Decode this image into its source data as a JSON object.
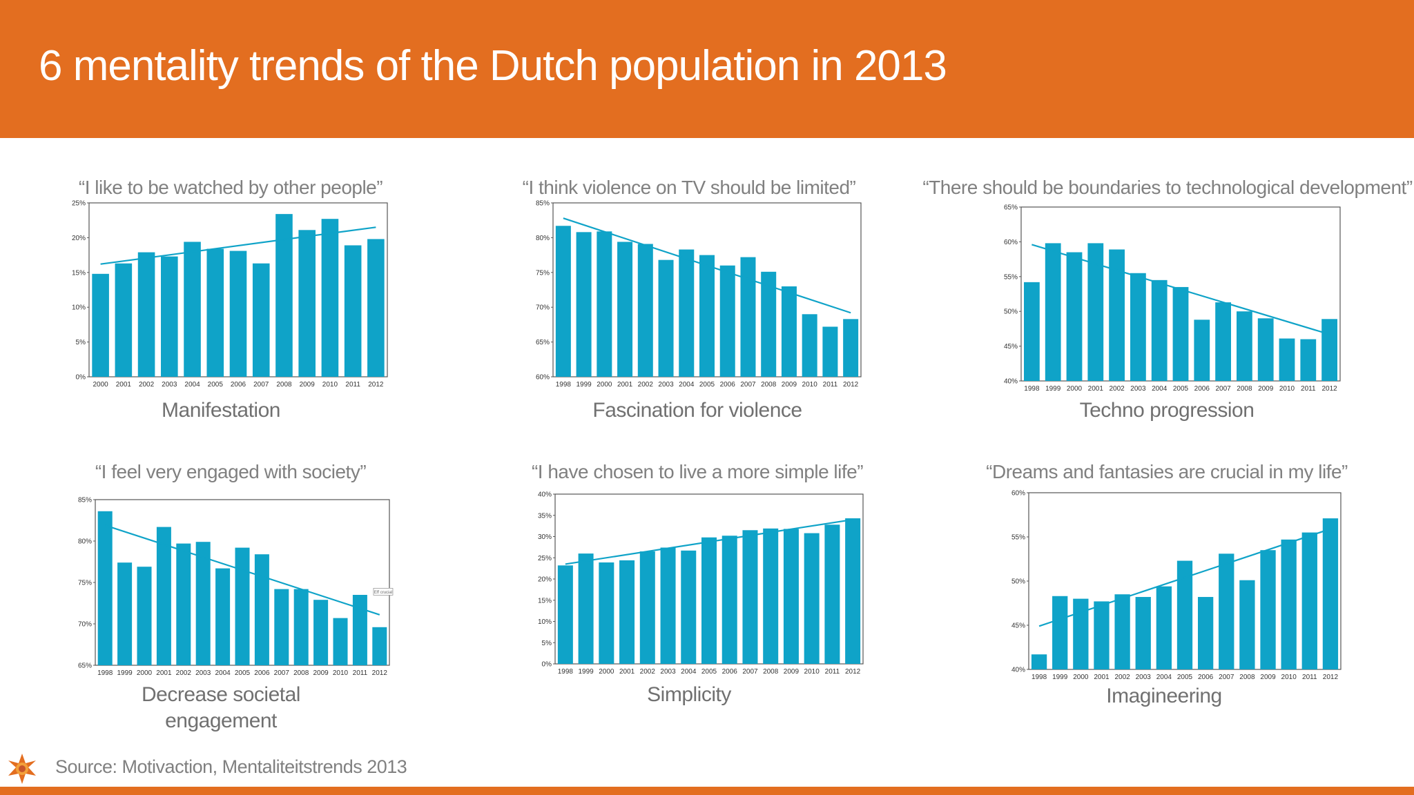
{
  "title": "6 mentality trends of the Dutch population in 2013",
  "source": "Source: Motivaction, Mentaliteitstrends 2013",
  "colors": {
    "header": "#e36e20",
    "bar": "#0fa3c8",
    "trend": "#0fa3c8",
    "text_gray": "#808080"
  },
  "logo_icon": "sun-logo-icon",
  "chart_data": [
    {
      "type": "bar",
      "quote": "“I like to be watched by other people”",
      "caption": "Manifestation",
      "categories": [
        "2000",
        "2001",
        "2002",
        "2003",
        "2004",
        "2005",
        "2006",
        "2007",
        "2008",
        "2009",
        "2010",
        "2011",
        "2012"
      ],
      "values": [
        14.8,
        16.3,
        17.9,
        17.3,
        19.4,
        18.4,
        18.1,
        16.3,
        23.4,
        21.1,
        22.7,
        18.9,
        19.8
      ],
      "trendline": [
        16.2,
        21.5
      ],
      "ylim": [
        0,
        25
      ],
      "yticks": [
        "0%",
        "5%",
        "10%",
        "15%",
        "20%",
        "25%"
      ],
      "grid": false
    },
    {
      "type": "bar",
      "quote": "“I think violence on TV should be limited”",
      "caption": "Fascination for violence",
      "categories": [
        "1998",
        "1999",
        "2000",
        "2001",
        "2002",
        "2003",
        "2004",
        "2005",
        "2006",
        "2007",
        "2008",
        "2009",
        "2010",
        "2011",
        "2012"
      ],
      "values": [
        81.7,
        80.8,
        80.9,
        79.4,
        79.1,
        76.8,
        78.3,
        77.5,
        76.0,
        77.2,
        75.1,
        73.0,
        69.0,
        67.2,
        68.3
      ],
      "trendline": [
        82.8,
        69.2
      ],
      "ylim": [
        60,
        85
      ],
      "yticks": [
        "60%",
        "65%",
        "70%",
        "75%",
        "80%",
        "85%"
      ],
      "grid": false
    },
    {
      "type": "bar",
      "quote": "“There should be boundaries to technological development”",
      "caption": "Techno progression",
      "categories": [
        "1998",
        "1999",
        "2000",
        "2001",
        "2002",
        "2003",
        "2004",
        "2005",
        "2006",
        "2007",
        "2008",
        "2009",
        "2010",
        "2011",
        "2012"
      ],
      "values": [
        54.2,
        59.8,
        58.5,
        59.8,
        58.9,
        55.5,
        54.5,
        53.5,
        48.8,
        51.3,
        50.0,
        49.0,
        46.1,
        46.0,
        48.9
      ],
      "trendline": [
        59.6,
        46.7
      ],
      "ylim": [
        40,
        65
      ],
      "yticks": [
        "40%",
        "45%",
        "50%",
        "55%",
        "60%",
        "65%"
      ],
      "grid": false
    },
    {
      "type": "bar",
      "quote": "“I feel very engaged with society”",
      "caption": "Decrease societal engagement",
      "categories": [
        "1998",
        "1999",
        "2000",
        "2001",
        "2002",
        "2003",
        "2004",
        "2005",
        "2006",
        "2007",
        "2008",
        "2009",
        "2010",
        "2011",
        "2012"
      ],
      "values": [
        83.6,
        77.4,
        76.9,
        81.7,
        79.7,
        79.9,
        76.7,
        79.2,
        78.4,
        74.2,
        74.2,
        72.9,
        70.7,
        73.5,
        69.6
      ],
      "trendline": [
        81.9,
        71.1
      ],
      "ylim": [
        65,
        85
      ],
      "yticks": [
        "65%",
        "70%",
        "75%",
        "80%",
        "85%"
      ],
      "grid": false,
      "annotation": "Eff crucial"
    },
    {
      "type": "bar",
      "quote": "“I have chosen to live a more simple life”",
      "caption": "Simplicity",
      "categories": [
        "1998",
        "1999",
        "2000",
        "2001",
        "2002",
        "2003",
        "2004",
        "2005",
        "2006",
        "2007",
        "2008",
        "2009",
        "2010",
        "2011",
        "2012"
      ],
      "values": [
        23.2,
        26.0,
        23.9,
        24.4,
        26.5,
        27.4,
        26.7,
        29.8,
        30.2,
        31.5,
        31.9,
        31.8,
        30.8,
        32.8,
        34.3
      ],
      "trendline": [
        23.5,
        34.0
      ],
      "ylim": [
        0,
        40
      ],
      "yticks": [
        "0%",
        "5%",
        "10%",
        "15%",
        "20%",
        "25%",
        "30%",
        "35%",
        "40%"
      ],
      "grid": false
    },
    {
      "type": "bar",
      "quote": "“Dreams and fantasies are crucial in my life”",
      "caption": "Imagineering",
      "categories": [
        "1998",
        "1999",
        "2000",
        "2001",
        "2002",
        "2003",
        "2004",
        "2005",
        "2006",
        "2007",
        "2008",
        "2009",
        "2010",
        "2011",
        "2012"
      ],
      "values": [
        41.7,
        48.3,
        48.0,
        47.7,
        48.5,
        48.2,
        49.4,
        52.3,
        48.2,
        53.1,
        50.1,
        53.5,
        54.7,
        55.5,
        57.1
      ],
      "trendline": [
        44.9,
        55.9
      ],
      "ylim": [
        40,
        60
      ],
      "yticks": [
        "40%",
        "45%",
        "50%",
        "55%",
        "60%"
      ],
      "grid": false
    }
  ]
}
